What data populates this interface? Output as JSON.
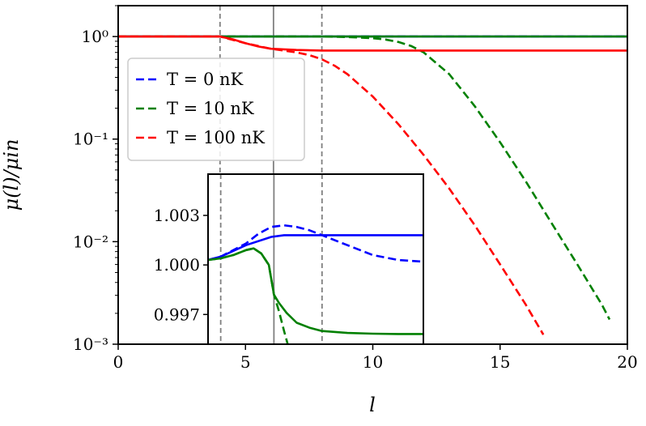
{
  "chart_data": [
    {
      "type": "line",
      "xlabel": "l",
      "ylabel": "μ(l)/μin",
      "y_scale": "log",
      "xlim": [
        0,
        20
      ],
      "ylim": [
        0.001,
        2
      ],
      "xticks": [
        "0",
        "5",
        "10",
        "15",
        "20"
      ],
      "yticks": [
        {
          "value": 1,
          "label": "10⁰"
        },
        {
          "value": 0.1,
          "label": "10⁻¹"
        },
        {
          "value": 0.01,
          "label": "10⁻²"
        },
        {
          "value": 0.001,
          "label": "10⁻³"
        }
      ],
      "grid": false,
      "legend_placement": "upper-left",
      "vertical_lines": [
        {
          "x": 4,
          "style": "dashed",
          "color": "#808080"
        },
        {
          "x": 6.1,
          "style": "solid",
          "color": "#808080"
        },
        {
          "x": 8,
          "style": "dashed",
          "color": "#808080"
        }
      ],
      "series": [
        {
          "name": "T = 0 nK",
          "color": "#0000ff",
          "style": "solid",
          "x": [
            0,
            20
          ],
          "y": [
            1.0,
            1.0
          ]
        },
        {
          "color": "#0000ff",
          "style": "dashed",
          "x": [
            0,
            20
          ],
          "y": [
            1.0,
            1.0
          ]
        },
        {
          "name": "T = 10 nK",
          "color": "#008000",
          "style": "solid",
          "x": [
            0,
            20
          ],
          "y": [
            1.0,
            1.0
          ]
        },
        {
          "color": "#008000",
          "style": "dashed",
          "x": [
            0,
            8,
            9,
            10,
            10.5,
            11,
            11.5,
            12,
            13,
            14,
            15,
            16,
            17,
            18,
            19,
            19.3
          ],
          "y": [
            1.0,
            1.0,
            0.99,
            0.965,
            0.935,
            0.885,
            0.81,
            0.7,
            0.43,
            0.21,
            0.093,
            0.039,
            0.0155,
            0.0062,
            0.00243,
            0.00174
          ]
        },
        {
          "name": "T = 100 nK",
          "color": "#ff0000",
          "style": "solid",
          "x": [
            0,
            4,
            4.5,
            5,
            5.5,
            6,
            7,
            8,
            20
          ],
          "y": [
            1.0,
            1.0,
            0.94,
            0.86,
            0.8,
            0.76,
            0.74,
            0.73,
            0.73
          ]
        },
        {
          "color": "#ff0000",
          "style": "dashed",
          "x": [
            0,
            4,
            5,
            6,
            7,
            7.5,
            8,
            8.5,
            9,
            10,
            11,
            12,
            13,
            14,
            15,
            16,
            16.7
          ],
          "y": [
            1.0,
            1.0,
            0.86,
            0.76,
            0.7,
            0.66,
            0.6,
            0.52,
            0.43,
            0.26,
            0.14,
            0.07,
            0.033,
            0.0145,
            0.006,
            0.00245,
            0.00124
          ]
        }
      ],
      "legend": [
        {
          "label": "T = 0 nK",
          "color": "#0000ff"
        },
        {
          "label": "T = 10 nK",
          "color": "#008000"
        },
        {
          "label": "T = 100 nK",
          "color": "#ff0000"
        }
      ]
    },
    {
      "type": "line",
      "role": "inset",
      "xlim": [
        3.5,
        12
      ],
      "ylim": [
        0.9952,
        1.0055
      ],
      "yticks": [
        "1.003",
        "1.000",
        "0.997"
      ],
      "series": [
        {
          "color": "#0000ff",
          "style": "solid",
          "x": [
            3.5,
            4,
            5,
            6,
            6.5,
            7,
            8,
            9,
            10,
            11,
            12
          ],
          "y": [
            1.0003,
            1.0005,
            1.0012,
            1.0017,
            1.0018,
            1.0018,
            1.0018,
            1.0018,
            1.0018,
            1.0018,
            1.0018
          ]
        },
        {
          "color": "#0000ff",
          "style": "dashed",
          "x": [
            3.5,
            4,
            4.5,
            5,
            5.5,
            6,
            6.5,
            7,
            7.5,
            8,
            9,
            10,
            11,
            12
          ],
          "y": [
            1.0003,
            1.0005,
            1.0009,
            1.0013,
            1.0019,
            1.0023,
            1.0024,
            1.0023,
            1.0021,
            1.0018,
            1.0012,
            1.0006,
            1.0003,
            1.0002
          ]
        },
        {
          "color": "#008000",
          "style": "solid",
          "x": [
            3.5,
            4,
            4.5,
            5,
            5.3,
            5.6,
            5.9,
            6.1,
            6.3,
            6.6,
            7,
            7.5,
            8,
            9,
            10,
            11,
            12
          ],
          "y": [
            1.0003,
            1.0004,
            1.0006,
            1.0009,
            1.001,
            1.0007,
            1.0,
            0.9982,
            0.9977,
            0.9971,
            0.9965,
            0.9962,
            0.996,
            0.99588,
            0.99584,
            0.99582,
            0.99582
          ]
        },
        {
          "color": "#008000",
          "style": "dashed",
          "x": [
            3.5,
            4,
            4.5,
            5,
            5.3,
            5.6,
            5.9,
            6.1,
            6.3,
            6.5,
            6.7
          ],
          "y": [
            1.0003,
            1.0004,
            1.0006,
            1.0009,
            1.001,
            1.0007,
            1.0,
            0.9982,
            0.9972,
            0.996,
            0.9949
          ]
        }
      ],
      "vertical_lines": [
        {
          "x": 4,
          "style": "dashed",
          "color": "#808080"
        },
        {
          "x": 6.1,
          "style": "solid",
          "color": "#808080"
        },
        {
          "x": 8,
          "style": "dashed",
          "color": "#808080"
        }
      ]
    }
  ]
}
